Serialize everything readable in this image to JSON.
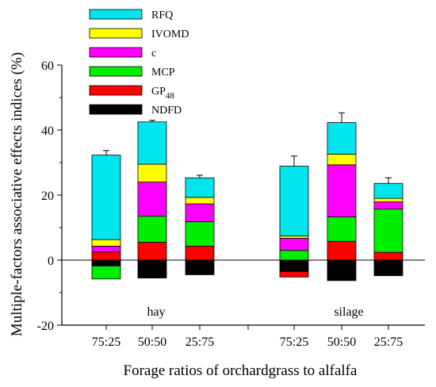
{
  "chart_data": {
    "type": "bar",
    "stacked": true,
    "ylabel": "Multiple-factors associative effects indices (%)",
    "xlabel": "Forage ratios of orchardgrass to alfalfa",
    "ylim": [
      -20,
      60
    ],
    "yticks": [
      -20,
      0,
      20,
      40,
      60
    ],
    "grid": false,
    "legend_placement": "top-left",
    "groups": [
      "hay",
      "silage"
    ],
    "categories": [
      "75:25",
      "50:50",
      "25:75",
      "75:25",
      "50:50",
      "25:75"
    ],
    "series": [
      {
        "name": "NDFD",
        "color": "#000000",
        "values": [
          -1.8,
          -5.5,
          -4.5,
          -3.5,
          -6.3,
          -4.8
        ]
      },
      {
        "name": "GP48",
        "color": "#ff0000",
        "values": [
          2.5,
          5.5,
          4.3,
          -1.7,
          5.8,
          2.4
        ]
      },
      {
        "name": "MCP",
        "color": "#00ee00",
        "values": [
          -4.0,
          8.0,
          7.5,
          3.0,
          7.5,
          13.3
        ]
      },
      {
        "name": "c",
        "color": "#ff00ff",
        "values": [
          1.8,
          10.5,
          5.5,
          3.7,
          16.0,
          2.2
        ]
      },
      {
        "name": "IVOMD",
        "color": "#ffff00",
        "values": [
          2.0,
          5.5,
          2.0,
          0.7,
          3.3,
          1.1
        ]
      },
      {
        "name": "RFQ",
        "color": "#00e5ee",
        "values": [
          26.0,
          13.0,
          6.0,
          21.5,
          9.7,
          4.6
        ]
      }
    ],
    "error_bar_tops": [
      33.7,
      43.0,
      26.1,
      32.0,
      45.3,
      25.3
    ]
  },
  "legend": [
    {
      "label": "RFQ",
      "sub": "",
      "color": "#00e5ee"
    },
    {
      "label": "IVOMD",
      "sub": "",
      "color": "#ffff00"
    },
    {
      "label": "c",
      "sub": "",
      "color": "#ff00ff"
    },
    {
      "label": "MCP",
      "sub": "",
      "color": "#00ee00"
    },
    {
      "label": "GP",
      "sub": "48",
      "color": "#ff0000"
    },
    {
      "label": "NDFD",
      "sub": "",
      "color": "#000000"
    }
  ]
}
